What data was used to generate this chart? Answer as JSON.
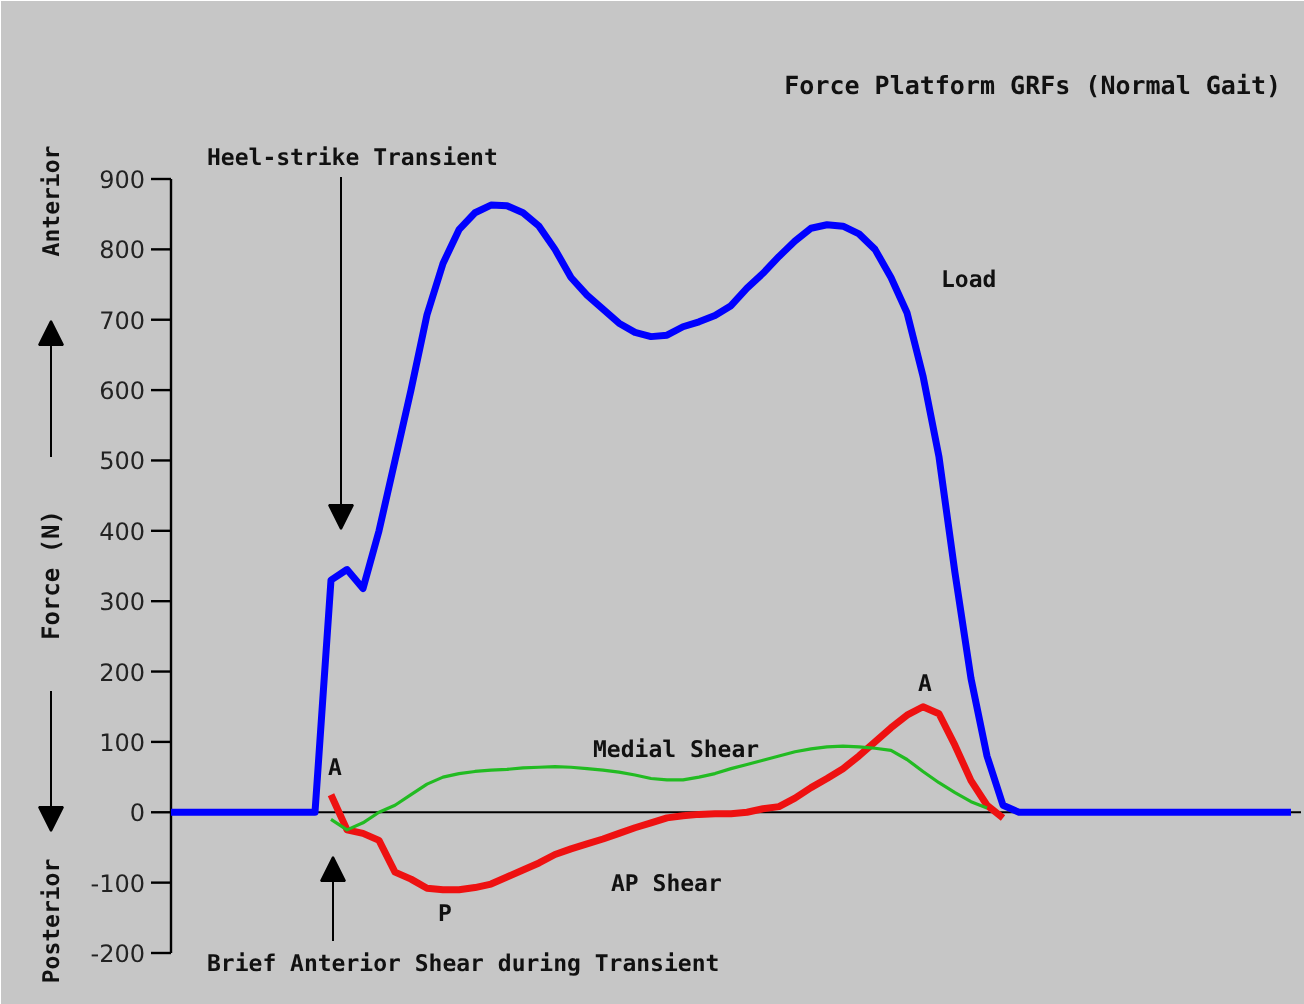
{
  "chart_data": {
    "type": "line",
    "title": "Force Platform GRFs (Normal Gait)",
    "ylabel": "Force (N)",
    "categories": [
      null,
      null,
      null,
      null,
      null,
      null,
      null,
      null,
      null,
      null,
      null,
      null,
      null,
      null,
      null,
      null,
      null,
      null,
      null,
      null,
      null,
      null,
      null,
      null,
      null,
      null,
      null,
      null,
      null,
      null,
      null,
      null,
      null,
      null,
      null,
      null,
      null,
      null,
      null,
      null,
      null,
      null,
      null,
      null,
      null,
      null,
      null,
      null,
      null,
      null,
      null,
      null,
      null,
      null,
      null,
      null,
      null,
      null,
      null,
      null,
      null,
      null,
      null,
      null,
      null,
      null,
      null,
      null,
      null,
      null,
      null
    ],
    "series": [
      {
        "name": "Load",
        "color": "#0000ff",
        "values": [
          0,
          0,
          0,
          0,
          0,
          0,
          0,
          0,
          0,
          0,
          330,
          345,
          318,
          400,
          500,
          600,
          707,
          780,
          828,
          852,
          863,
          862,
          852,
          833,
          800,
          760,
          735,
          715,
          695,
          682,
          676,
          678,
          690,
          697,
          706,
          720,
          745,
          766,
          790,
          812,
          830,
          835,
          833,
          822,
          800,
          760,
          710,
          620,
          505,
          340,
          190,
          80,
          10,
          0,
          0,
          0,
          0,
          0,
          0,
          0,
          0,
          0,
          0,
          0,
          0,
          0,
          0,
          0,
          0,
          0,
          0
        ]
      },
      {
        "name": "Medial Shear",
        "color": "#22bb22",
        "values": [
          null,
          null,
          null,
          null,
          null,
          null,
          null,
          null,
          null,
          null,
          -10,
          -25,
          -15,
          0,
          10,
          25,
          40,
          50,
          55,
          58,
          60,
          61,
          63,
          64,
          65,
          64,
          62,
          60,
          57,
          53,
          48,
          46,
          46,
          50,
          55,
          62,
          68,
          74,
          80,
          86,
          90,
          93,
          94,
          93,
          91,
          88,
          75,
          58,
          42,
          28,
          15,
          6,
          null,
          null,
          null,
          null,
          null,
          null,
          null,
          null,
          null,
          null,
          null,
          null,
          null,
          null,
          null,
          null,
          null,
          null,
          null
        ]
      },
      {
        "name": "AP Shear",
        "color": "#ee1111",
        "values": [
          null,
          null,
          null,
          null,
          null,
          null,
          null,
          null,
          null,
          null,
          25,
          -25,
          -30,
          -40,
          -85,
          -95,
          -108,
          -110,
          -110,
          -107,
          -102,
          -92,
          -82,
          -72,
          -60,
          -52,
          -45,
          -38,
          -30,
          -22,
          -15,
          -8,
          -5,
          -3,
          -2,
          -2,
          0,
          5,
          8,
          20,
          35,
          48,
          62,
          80,
          100,
          120,
          138,
          150,
          140,
          95,
          45,
          10,
          -8,
          null,
          null,
          null,
          null,
          null,
          null,
          null,
          null,
          null,
          null,
          null,
          null,
          null,
          null,
          null,
          null,
          null,
          null
        ]
      }
    ],
    "ylim": [
      -200,
      900
    ],
    "yticks": [
      -200,
      -100,
      0,
      100,
      200,
      300,
      400,
      500,
      600,
      700,
      800,
      900
    ],
    "ref_lines": [
      {
        "axis": "y",
        "value": 0,
        "color": "#000000"
      }
    ],
    "annotations": [
      "Heel-strike Transient",
      "Brief Anterior Shear during Transient",
      "Anterior",
      "Posterior",
      "A",
      "P",
      "A"
    ],
    "grid": false,
    "tick_labels": "y",
    "marker": "none",
    "line_style": "solid"
  }
}
